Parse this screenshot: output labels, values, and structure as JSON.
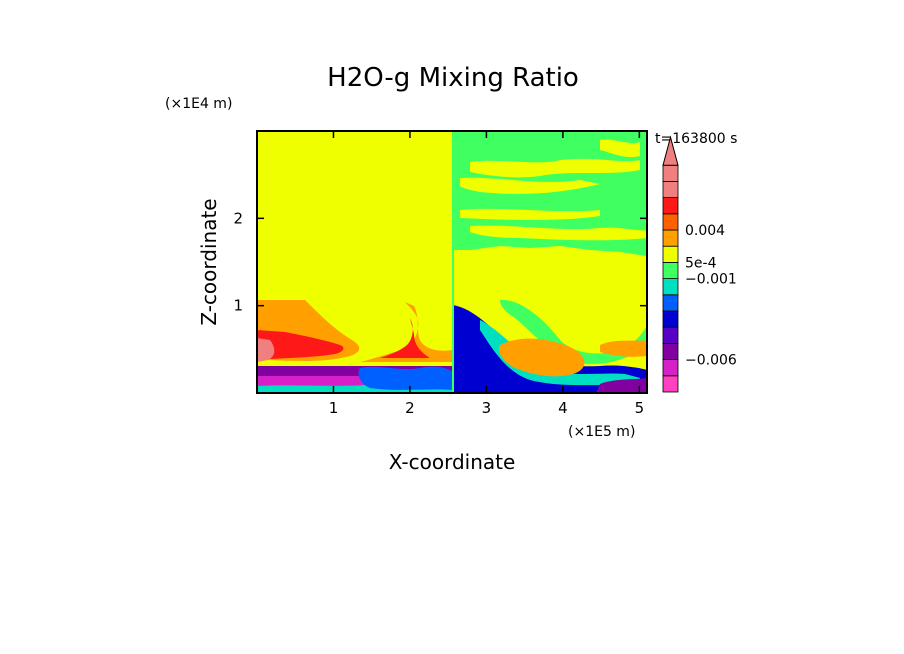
{
  "chart_data": {
    "type": "heatmap",
    "title": "H2O-g Mixing Ratio",
    "time_label": "t=163800 s",
    "xlabel": "X-coordinate",
    "ylabel": "Z-coordinate",
    "x_unit": "(×1E5 m)",
    "y_unit": "(×1E4 m)",
    "xlim": [
      0,
      5.1
    ],
    "ylim": [
      0,
      3.0
    ],
    "x_ticks": [
      1,
      2,
      3,
      4,
      5
    ],
    "y_ticks": [
      1,
      2
    ],
    "x_tick_labels": [
      "1",
      "2",
      "3",
      "4",
      "5"
    ],
    "y_tick_labels": [
      "1",
      "2"
    ],
    "colorbar": {
      "colors": [
        "#ff40c0",
        "#d820c8",
        "#8000a0",
        "#5800c8",
        "#0000d0",
        "#0060ff",
        "#00e0c0",
        "#40ff60",
        "#f0ff00",
        "#ffa000",
        "#ff6000",
        "#ff1818",
        "#f08080",
        "#f08080"
      ],
      "arrow_color": "#f08080",
      "label_entries": [
        {
          "text": "0.004",
          "level": 10
        },
        {
          "text": "5e-4",
          "level": 8
        },
        {
          "text": "−0.001",
          "level": 7
        },
        {
          "text": "−0.006",
          "level": 2
        }
      ]
    },
    "regions": [
      {
        "color": "yellow",
        "x": [
          0.0,
          2.57
        ],
        "z": [
          0.0,
          3.0
        ]
      },
      {
        "color": "green",
        "x": [
          2.57,
          5.1
        ],
        "z": [
          1.6,
          3.0
        ]
      },
      {
        "color": "yellow",
        "x": [
          2.57,
          5.1
        ],
        "z": [
          0.9,
          1.6
        ]
      },
      {
        "color": "orange",
        "x": [
          0.0,
          1.3
        ],
        "z": [
          0.35,
          1.0
        ]
      },
      {
        "color": "red",
        "x": [
          0.0,
          1.0
        ],
        "z": [
          0.35,
          0.7
        ]
      },
      {
        "color": "pink",
        "x": [
          0.0,
          0.4
        ],
        "z": [
          0.35,
          0.5
        ]
      },
      {
        "color": "purple",
        "x": [
          0.0,
          2.5
        ],
        "z": [
          0.05,
          0.3
        ]
      },
      {
        "color": "blue",
        "x": [
          2.57,
          5.1
        ],
        "z": [
          0.0,
          0.9
        ]
      },
      {
        "color": "orange",
        "x": [
          3.2,
          4.3
        ],
        "z": [
          0.3,
          0.6
        ]
      }
    ]
  }
}
